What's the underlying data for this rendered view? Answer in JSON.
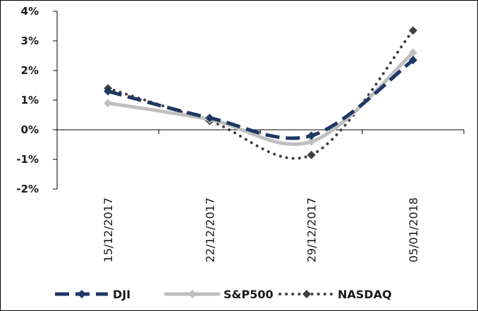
{
  "chart_data": {
    "type": "line",
    "title": "",
    "xlabel": "",
    "ylabel": "",
    "categories": [
      "15/12/2017",
      "22/12/2017",
      "29/12/2017",
      "05/01/2018"
    ],
    "y_ticks": [
      "-2%",
      "-1%",
      "0%",
      "1%",
      "2%",
      "3%",
      "4%"
    ],
    "y_tick_values": [
      -2,
      -1,
      0,
      1,
      2,
      3,
      4
    ],
    "ylim": [
      -2,
      4
    ],
    "grid": false,
    "legend_position": "bottom",
    "series": [
      {
        "name": "DJI",
        "values": [
          1.3,
          0.4,
          -0.2,
          2.35
        ],
        "color": "#1f3864",
        "style": "long-dash",
        "marker": "diamond"
      },
      {
        "name": "S&P500",
        "values": [
          0.9,
          0.35,
          -0.4,
          2.6
        ],
        "color": "#bfbfbf",
        "style": "solid",
        "marker": "diamond"
      },
      {
        "name": "NASDAQ",
        "values": [
          1.4,
          0.3,
          -0.85,
          3.35
        ],
        "color": "#404040",
        "style": "dotted",
        "marker": "diamond"
      }
    ]
  }
}
